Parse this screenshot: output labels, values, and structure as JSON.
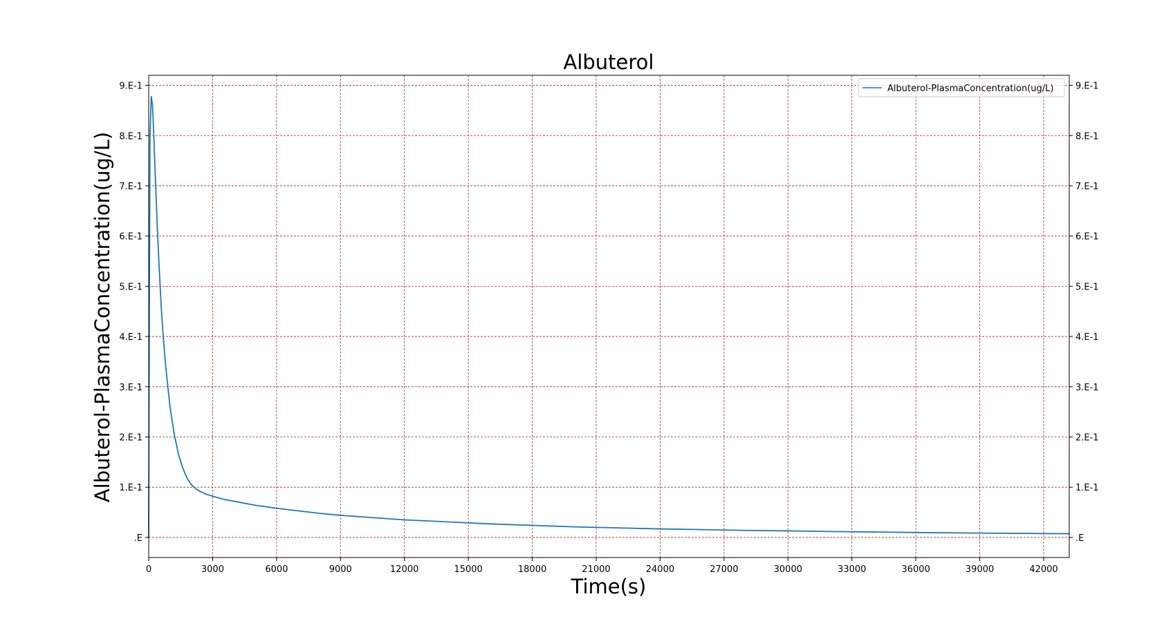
{
  "chart_data": {
    "type": "line",
    "title": "Albuterol",
    "xlabel": "Time(s)",
    "ylabel": "Albuterol-PlasmaConcentration(ug/L)",
    "xlim": [
      0,
      43200
    ],
    "ylim": [
      -0.04,
      0.92
    ],
    "xticks": [
      0,
      3000,
      6000,
      9000,
      12000,
      15000,
      18000,
      21000,
      24000,
      27000,
      30000,
      33000,
      36000,
      39000,
      42000
    ],
    "xtick_labels": [
      "0",
      "3000",
      "6000",
      "9000",
      "12000",
      "15000",
      "18000",
      "21000",
      "24000",
      "27000",
      "30000",
      "33000",
      "36000",
      "39000",
      "42000"
    ],
    "yticks": [
      0,
      0.1,
      0.2,
      0.3,
      0.4,
      0.5,
      0.6,
      0.7,
      0.8,
      0.9
    ],
    "ytick_labels": [
      ".E",
      "1.E-1",
      "2.E-1",
      "3.E-1",
      "4.E-1",
      "5.E-1",
      "6.E-1",
      "7.E-1",
      "8.E-1",
      "9.E-1"
    ],
    "grid": true,
    "grid_color": "#b22222",
    "line_color": "#1f77b4",
    "legend_position": "top-right",
    "series": [
      {
        "name": "Albuterol-PlasmaConcentration(ug/L)",
        "x": [
          0,
          30,
          60,
          120,
          180,
          240,
          300,
          400,
          500,
          600,
          700,
          800,
          900,
          1000,
          1200,
          1400,
          1600,
          1800,
          2000,
          2200,
          2400,
          2700,
          3000,
          3500,
          4000,
          5000,
          6000,
          7000,
          8000,
          9000,
          10000,
          12000,
          14000,
          16000,
          18000,
          20000,
          22000,
          24000,
          26000,
          28000,
          30000,
          32000,
          34000,
          36000,
          38000,
          40000,
          42000,
          43200
        ],
        "y": [
          0,
          0.45,
          0.8,
          0.878,
          0.86,
          0.8,
          0.73,
          0.62,
          0.53,
          0.45,
          0.39,
          0.34,
          0.3,
          0.26,
          0.205,
          0.165,
          0.138,
          0.118,
          0.105,
          0.097,
          0.092,
          0.086,
          0.082,
          0.076,
          0.072,
          0.064,
          0.058,
          0.053,
          0.048,
          0.044,
          0.041,
          0.035,
          0.031,
          0.027,
          0.024,
          0.021,
          0.019,
          0.017,
          0.0155,
          0.014,
          0.013,
          0.0118,
          0.0108,
          0.0098,
          0.009,
          0.0083,
          0.0077,
          0.0074
        ]
      }
    ]
  }
}
